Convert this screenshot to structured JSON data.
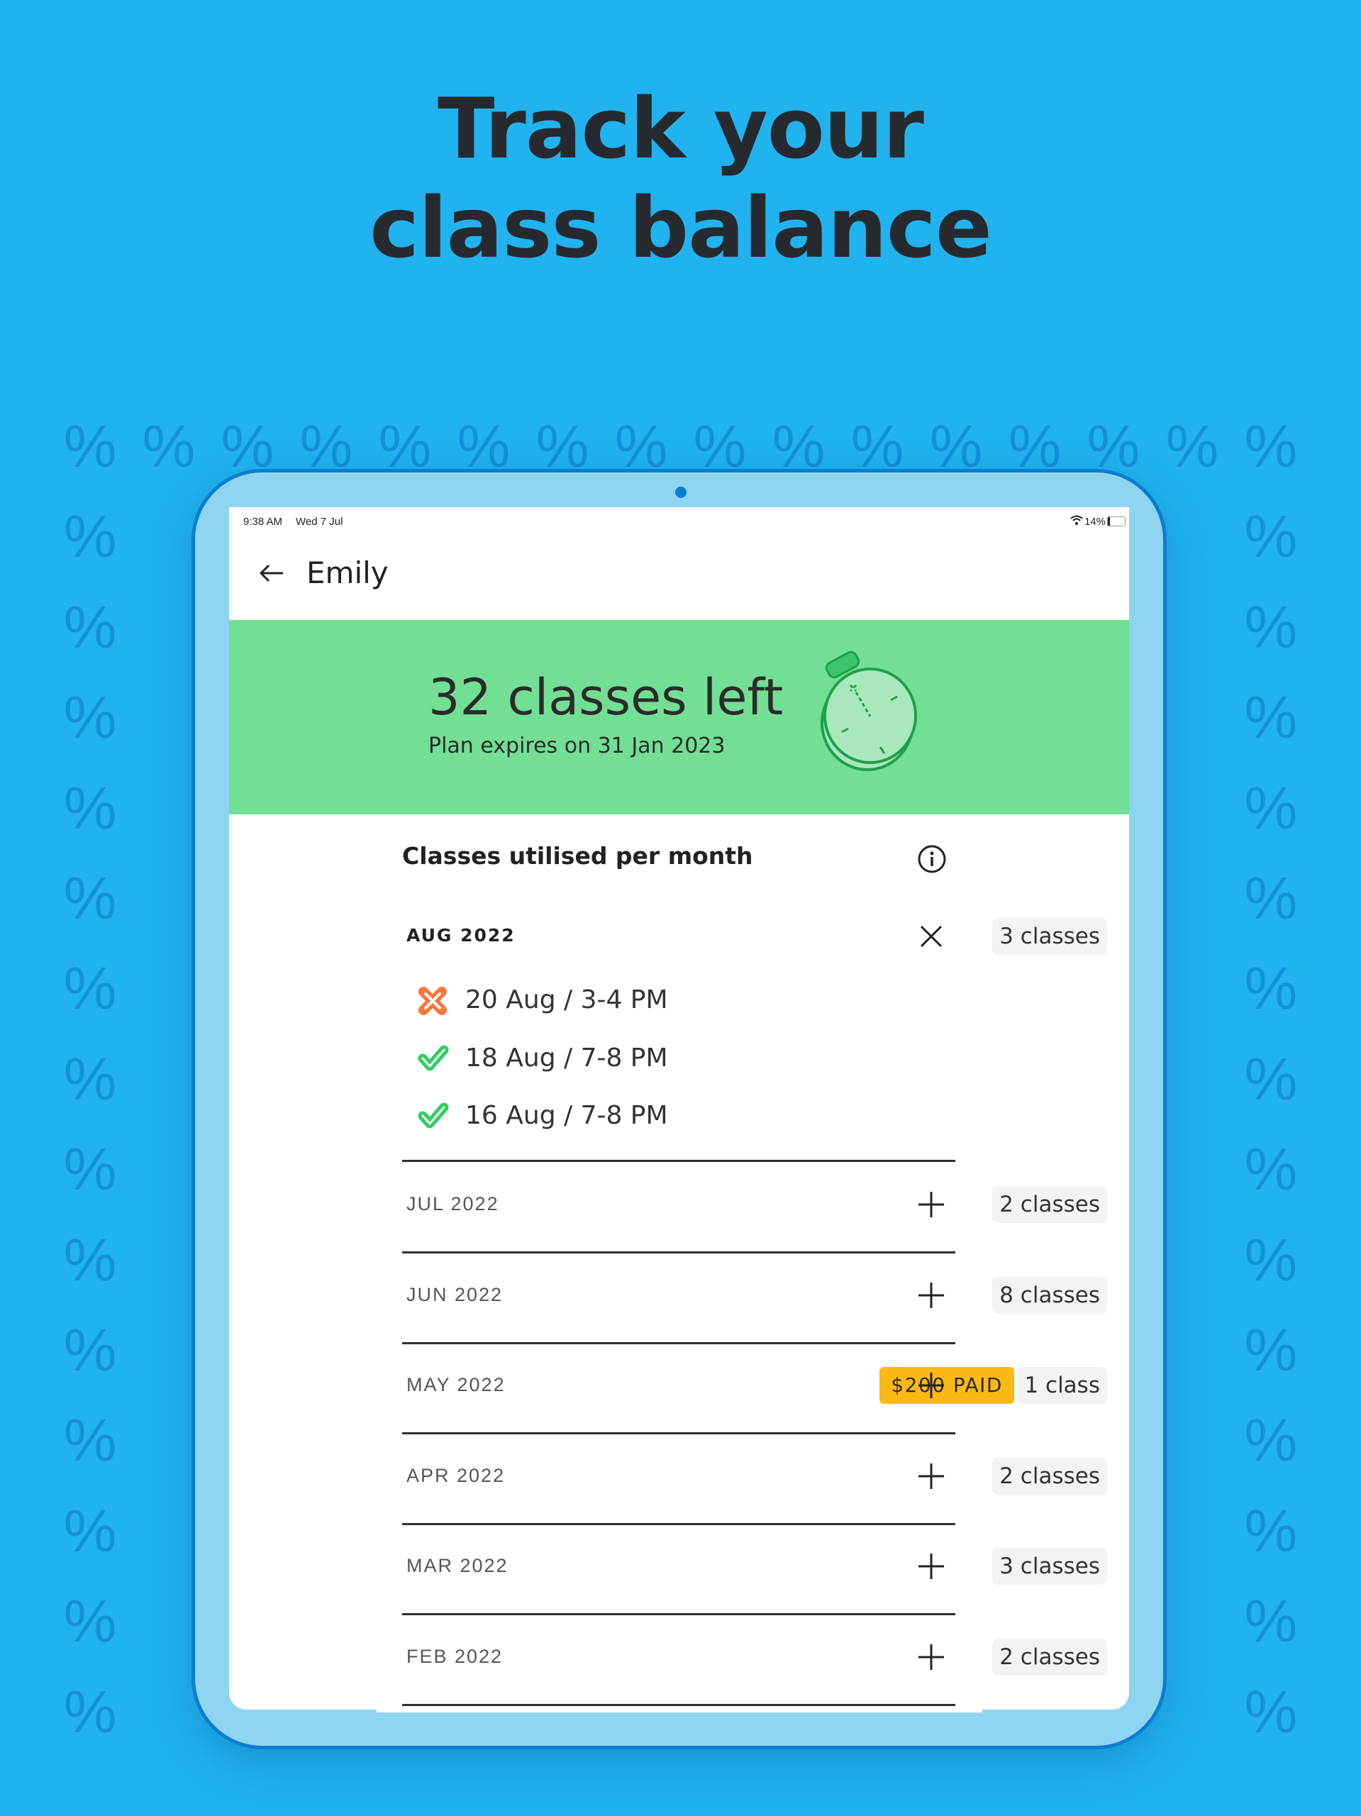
{
  "hero": {
    "line1": "Track your",
    "line2": "class balance"
  },
  "background": {
    "pattern_glyph": "%",
    "color": "#20b3ef",
    "pattern_color": "#1490d9"
  },
  "status_bar": {
    "time": "9:38 AM",
    "date": "Wed 7 Jul",
    "battery": "14%"
  },
  "header": {
    "back_icon": "arrow-left-icon",
    "title": "Emily"
  },
  "balance": {
    "headline": "32 classes left",
    "subtitle": "Plan expires on 31 Jan 2023",
    "icon": "stopwatch-icon",
    "color": "#72df95"
  },
  "section": {
    "title": "Classes utilised per month",
    "info_icon": "info-icon"
  },
  "months": [
    {
      "label": "AUG 2022",
      "count": "3 classes",
      "expanded": true,
      "sessions": [
        {
          "text": "20 Aug / 3-4 PM",
          "status": "missed"
        },
        {
          "text": "18 Aug / 7-8 PM",
          "status": "attended"
        },
        {
          "text": "16 Aug / 7-8 PM",
          "status": "attended"
        }
      ]
    },
    {
      "label": "JUL 2022",
      "count": "2 classes",
      "expanded": false
    },
    {
      "label": "JUN 2022",
      "count": "8 classes",
      "expanded": false
    },
    {
      "label": "MAY 2022",
      "count": "1 class",
      "badge": "$200 PAID",
      "expanded": false
    },
    {
      "label": "APR 2022",
      "count": "2 classes",
      "expanded": false
    },
    {
      "label": "MAR 2022",
      "count": "3 classes",
      "expanded": false
    },
    {
      "label": "FEB 2022",
      "count": "2 classes",
      "expanded": false
    }
  ]
}
